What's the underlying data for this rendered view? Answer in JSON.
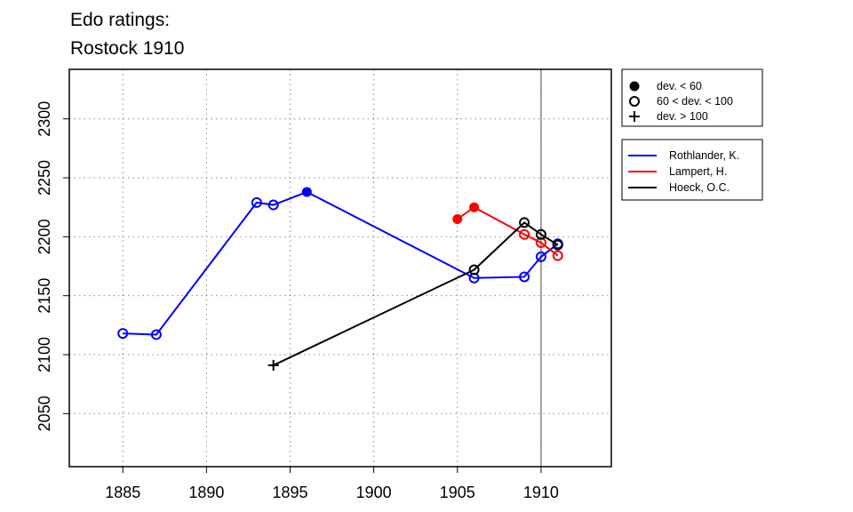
{
  "chart_data": {
    "type": "line",
    "title": [
      "Edo ratings:",
      "Rostock 1910"
    ],
    "xlabel": "",
    "ylabel": "",
    "xlim": [
      1881.8,
      1914.2
    ],
    "ylim": [
      2005,
      2342
    ],
    "x_ticks": [
      1885,
      1890,
      1895,
      1900,
      1905,
      1910
    ],
    "y_ticks": [
      2050,
      2100,
      2150,
      2200,
      2250,
      2300
    ],
    "grid": true,
    "reference_line_x": 1910,
    "marker_legend": {
      "placement": "top-right",
      "entries": [
        {
          "marker": "filled",
          "label": "dev. < 60"
        },
        {
          "marker": "open",
          "label": "60 < dev. < 100"
        },
        {
          "marker": "plus",
          "label": "dev. > 100"
        }
      ]
    },
    "series_legend_placement": "right",
    "series": [
      {
        "name": "Rothlander, K.",
        "color": "#0000ff",
        "points": [
          {
            "x": 1885,
            "y": 2118,
            "marker": "open"
          },
          {
            "x": 1887,
            "y": 2117,
            "marker": "open"
          },
          {
            "x": 1893,
            "y": 2229,
            "marker": "open"
          },
          {
            "x": 1894,
            "y": 2227,
            "marker": "open"
          },
          {
            "x": 1896,
            "y": 2238,
            "marker": "filled"
          },
          {
            "x": 1906,
            "y": 2165,
            "marker": "open"
          },
          {
            "x": 1909,
            "y": 2166,
            "marker": "open"
          },
          {
            "x": 1910,
            "y": 2183,
            "marker": "open"
          },
          {
            "x": 1911,
            "y": 2194,
            "marker": "open"
          }
        ]
      },
      {
        "name": "Lampert, H.",
        "color": "#ff0000",
        "points": [
          {
            "x": 1905,
            "y": 2215,
            "marker": "filled"
          },
          {
            "x": 1906,
            "y": 2225,
            "marker": "filled"
          },
          {
            "x": 1909,
            "y": 2202,
            "marker": "open"
          },
          {
            "x": 1910,
            "y": 2195,
            "marker": "open"
          },
          {
            "x": 1911,
            "y": 2184,
            "marker": "open"
          }
        ]
      },
      {
        "name": "Hoeck, O.C.",
        "color": "#000000",
        "points": [
          {
            "x": 1894,
            "y": 2091,
            "marker": "plus"
          },
          {
            "x": 1906,
            "y": 2172,
            "marker": "open"
          },
          {
            "x": 1909,
            "y": 2212,
            "marker": "open"
          },
          {
            "x": 1910,
            "y": 2202,
            "marker": "open"
          },
          {
            "x": 1911,
            "y": 2193,
            "marker": "open"
          }
        ]
      }
    ]
  }
}
